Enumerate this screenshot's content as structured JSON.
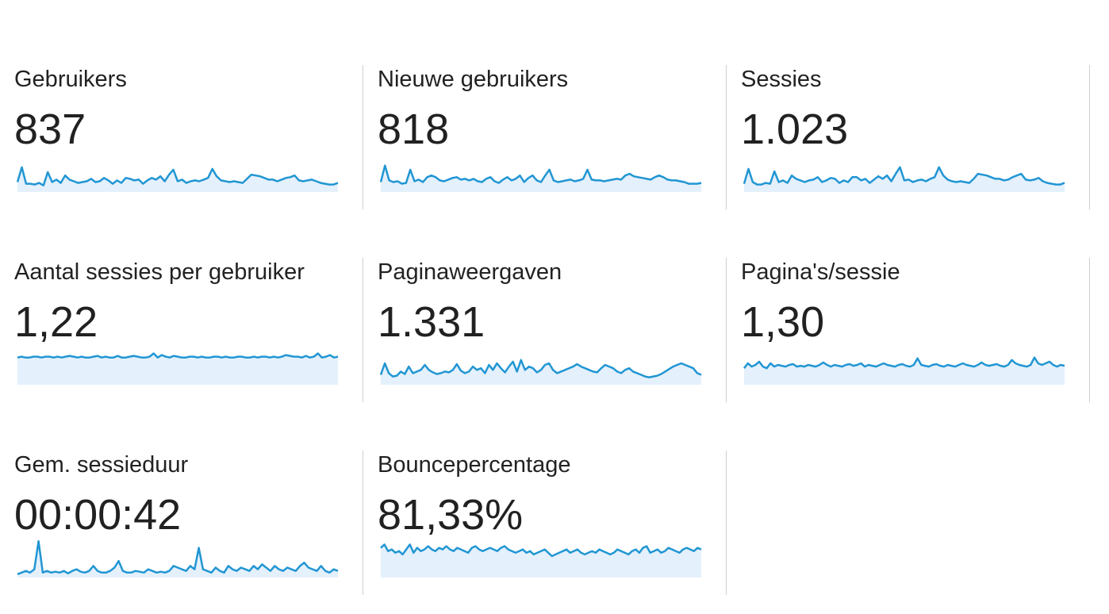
{
  "accent_color": "#2196d3",
  "fill_color": "#e4f0fb",
  "metrics": [
    {
      "label": "Gebruikers",
      "value": "837",
      "spark": [
        12,
        30,
        10,
        10,
        9,
        11,
        8,
        24,
        12,
        15,
        11,
        20,
        15,
        13,
        11,
        12,
        13,
        16,
        12,
        13,
        17,
        14,
        10,
        14,
        11,
        17,
        16,
        14,
        15,
        10,
        14,
        17,
        15,
        19,
        13,
        21,
        27,
        13,
        15,
        11,
        13,
        14,
        13,
        15,
        17,
        28,
        19,
        14,
        13,
        12,
        13,
        12,
        11,
        16,
        21,
        20,
        19,
        17,
        15,
        15,
        13,
        15,
        17,
        18,
        20,
        14,
        13,
        14,
        15,
        13,
        11,
        10,
        9,
        9,
        11
      ]
    },
    {
      "label": "Nieuwe gebruikers",
      "value": "818",
      "spark": [
        12,
        32,
        14,
        12,
        13,
        10,
        11,
        27,
        13,
        15,
        12,
        18,
        20,
        18,
        14,
        13,
        15,
        17,
        18,
        15,
        16,
        14,
        16,
        13,
        12,
        16,
        18,
        13,
        11,
        15,
        18,
        14,
        16,
        20,
        12,
        17,
        20,
        14,
        12,
        20,
        27,
        14,
        12,
        13,
        14,
        15,
        13,
        14,
        16,
        27,
        15,
        14,
        14,
        13,
        14,
        15,
        16,
        15,
        20,
        22,
        19,
        18,
        17,
        16,
        15,
        18,
        20,
        18,
        15,
        14,
        14,
        13,
        12,
        10,
        10,
        10,
        11
      ]
    },
    {
      "label": "Sessies",
      "value": "1.023",
      "spark": [
        10,
        28,
        12,
        9,
        9,
        11,
        10,
        25,
        12,
        14,
        11,
        20,
        16,
        14,
        12,
        14,
        15,
        18,
        12,
        14,
        17,
        16,
        11,
        14,
        12,
        18,
        18,
        14,
        16,
        11,
        15,
        19,
        16,
        20,
        13,
        22,
        30,
        14,
        15,
        12,
        14,
        15,
        13,
        16,
        18,
        30,
        20,
        15,
        13,
        12,
        13,
        12,
        11,
        16,
        22,
        21,
        20,
        18,
        16,
        16,
        14,
        15,
        18,
        20,
        22,
        15,
        14,
        15,
        17,
        13,
        11,
        10,
        9,
        9,
        11
      ]
    },
    {
      "label": "Aantal sessies per gebruiker",
      "value": "1,22",
      "spark": [
        33,
        34,
        33,
        33,
        34,
        34,
        33,
        34,
        34,
        33,
        34,
        33,
        34,
        35,
        34,
        33,
        34,
        33,
        33,
        34,
        35,
        33,
        34,
        33,
        33,
        35,
        33,
        33,
        34,
        35,
        34,
        33,
        33,
        34,
        38,
        33,
        36,
        34,
        33,
        35,
        34,
        33,
        33,
        34,
        34,
        33,
        34,
        33,
        33,
        34,
        34,
        33,
        34,
        33,
        33,
        34,
        34,
        33,
        33,
        34,
        33,
        34,
        34,
        33,
        34,
        33,
        34,
        36,
        35,
        34,
        34,
        33,
        35,
        33,
        34,
        38,
        33,
        34,
        36,
        33,
        34
      ]
    },
    {
      "label": "Paginaweergaven",
      "value": "1.331",
      "spark": [
        12,
        26,
        14,
        10,
        11,
        16,
        13,
        22,
        14,
        16,
        18,
        24,
        18,
        15,
        13,
        14,
        16,
        15,
        18,
        25,
        17,
        14,
        16,
        22,
        18,
        20,
        14,
        24,
        18,
        26,
        20,
        15,
        22,
        28,
        16,
        30,
        18,
        22,
        20,
        15,
        18,
        24,
        26,
        18,
        14,
        16,
        18,
        20,
        22,
        25,
        22,
        20,
        18,
        16,
        15,
        20,
        24,
        22,
        20,
        16,
        14,
        18,
        20,
        16,
        14,
        12,
        10,
        9,
        10,
        11,
        13,
        16,
        19,
        22,
        24,
        26,
        24,
        22,
        20,
        14,
        12
      ]
    },
    {
      "label": "Pagina's/sessie",
      "value": "1,30",
      "spark": [
        20,
        26,
        22,
        24,
        28,
        22,
        20,
        26,
        22,
        24,
        23,
        22,
        24,
        25,
        22,
        23,
        22,
        24,
        23,
        22,
        24,
        27,
        24,
        22,
        24,
        23,
        22,
        24,
        25,
        23,
        24,
        26,
        22,
        24,
        23,
        22,
        24,
        26,
        24,
        23,
        22,
        24,
        25,
        23,
        22,
        24,
        32,
        24,
        23,
        22,
        24,
        25,
        23,
        22,
        24,
        23,
        22,
        24,
        26,
        24,
        23,
        22,
        24,
        27,
        24,
        23,
        24,
        25,
        23,
        22,
        24,
        30,
        26,
        24,
        23,
        22,
        24,
        33,
        26,
        24,
        26,
        28,
        24,
        22,
        24,
        23
      ]
    },
    {
      "label": "Gem. sessieduur",
      "value": "00:00:42",
      "spark": [
        4,
        6,
        8,
        6,
        10,
        44,
        6,
        8,
        6,
        7,
        6,
        8,
        5,
        8,
        10,
        7,
        6,
        8,
        14,
        8,
        6,
        6,
        8,
        12,
        20,
        8,
        6,
        6,
        8,
        7,
        6,
        10,
        8,
        6,
        7,
        6,
        8,
        14,
        12,
        10,
        8,
        14,
        10,
        36,
        10,
        8,
        6,
        12,
        8,
        6,
        14,
        10,
        8,
        12,
        10,
        8,
        14,
        10,
        16,
        12,
        8,
        14,
        10,
        8,
        12,
        10,
        8,
        14,
        18,
        12,
        10,
        8,
        14,
        8,
        6,
        10,
        8
      ]
    },
    {
      "label": "Bouncepercentage",
      "value": "81,33%",
      "spark": [
        36,
        40,
        32,
        34,
        30,
        32,
        28,
        34,
        40,
        30,
        36,
        32,
        34,
        38,
        34,
        32,
        36,
        34,
        38,
        34,
        32,
        36,
        34,
        32,
        30,
        36,
        38,
        34,
        32,
        34,
        36,
        34,
        32,
        36,
        38,
        34,
        32,
        30,
        32,
        34,
        30,
        32,
        28,
        30,
        32,
        34,
        30,
        26,
        28,
        30,
        32,
        34,
        30,
        32,
        34,
        30,
        28,
        30,
        32,
        30,
        34,
        32,
        30,
        28,
        30,
        34,
        32,
        30,
        28,
        32,
        34,
        30,
        36,
        38,
        30,
        32,
        34,
        30,
        32,
        36,
        34,
        32,
        30,
        34,
        36,
        34,
        32,
        36,
        34
      ]
    }
  ]
}
